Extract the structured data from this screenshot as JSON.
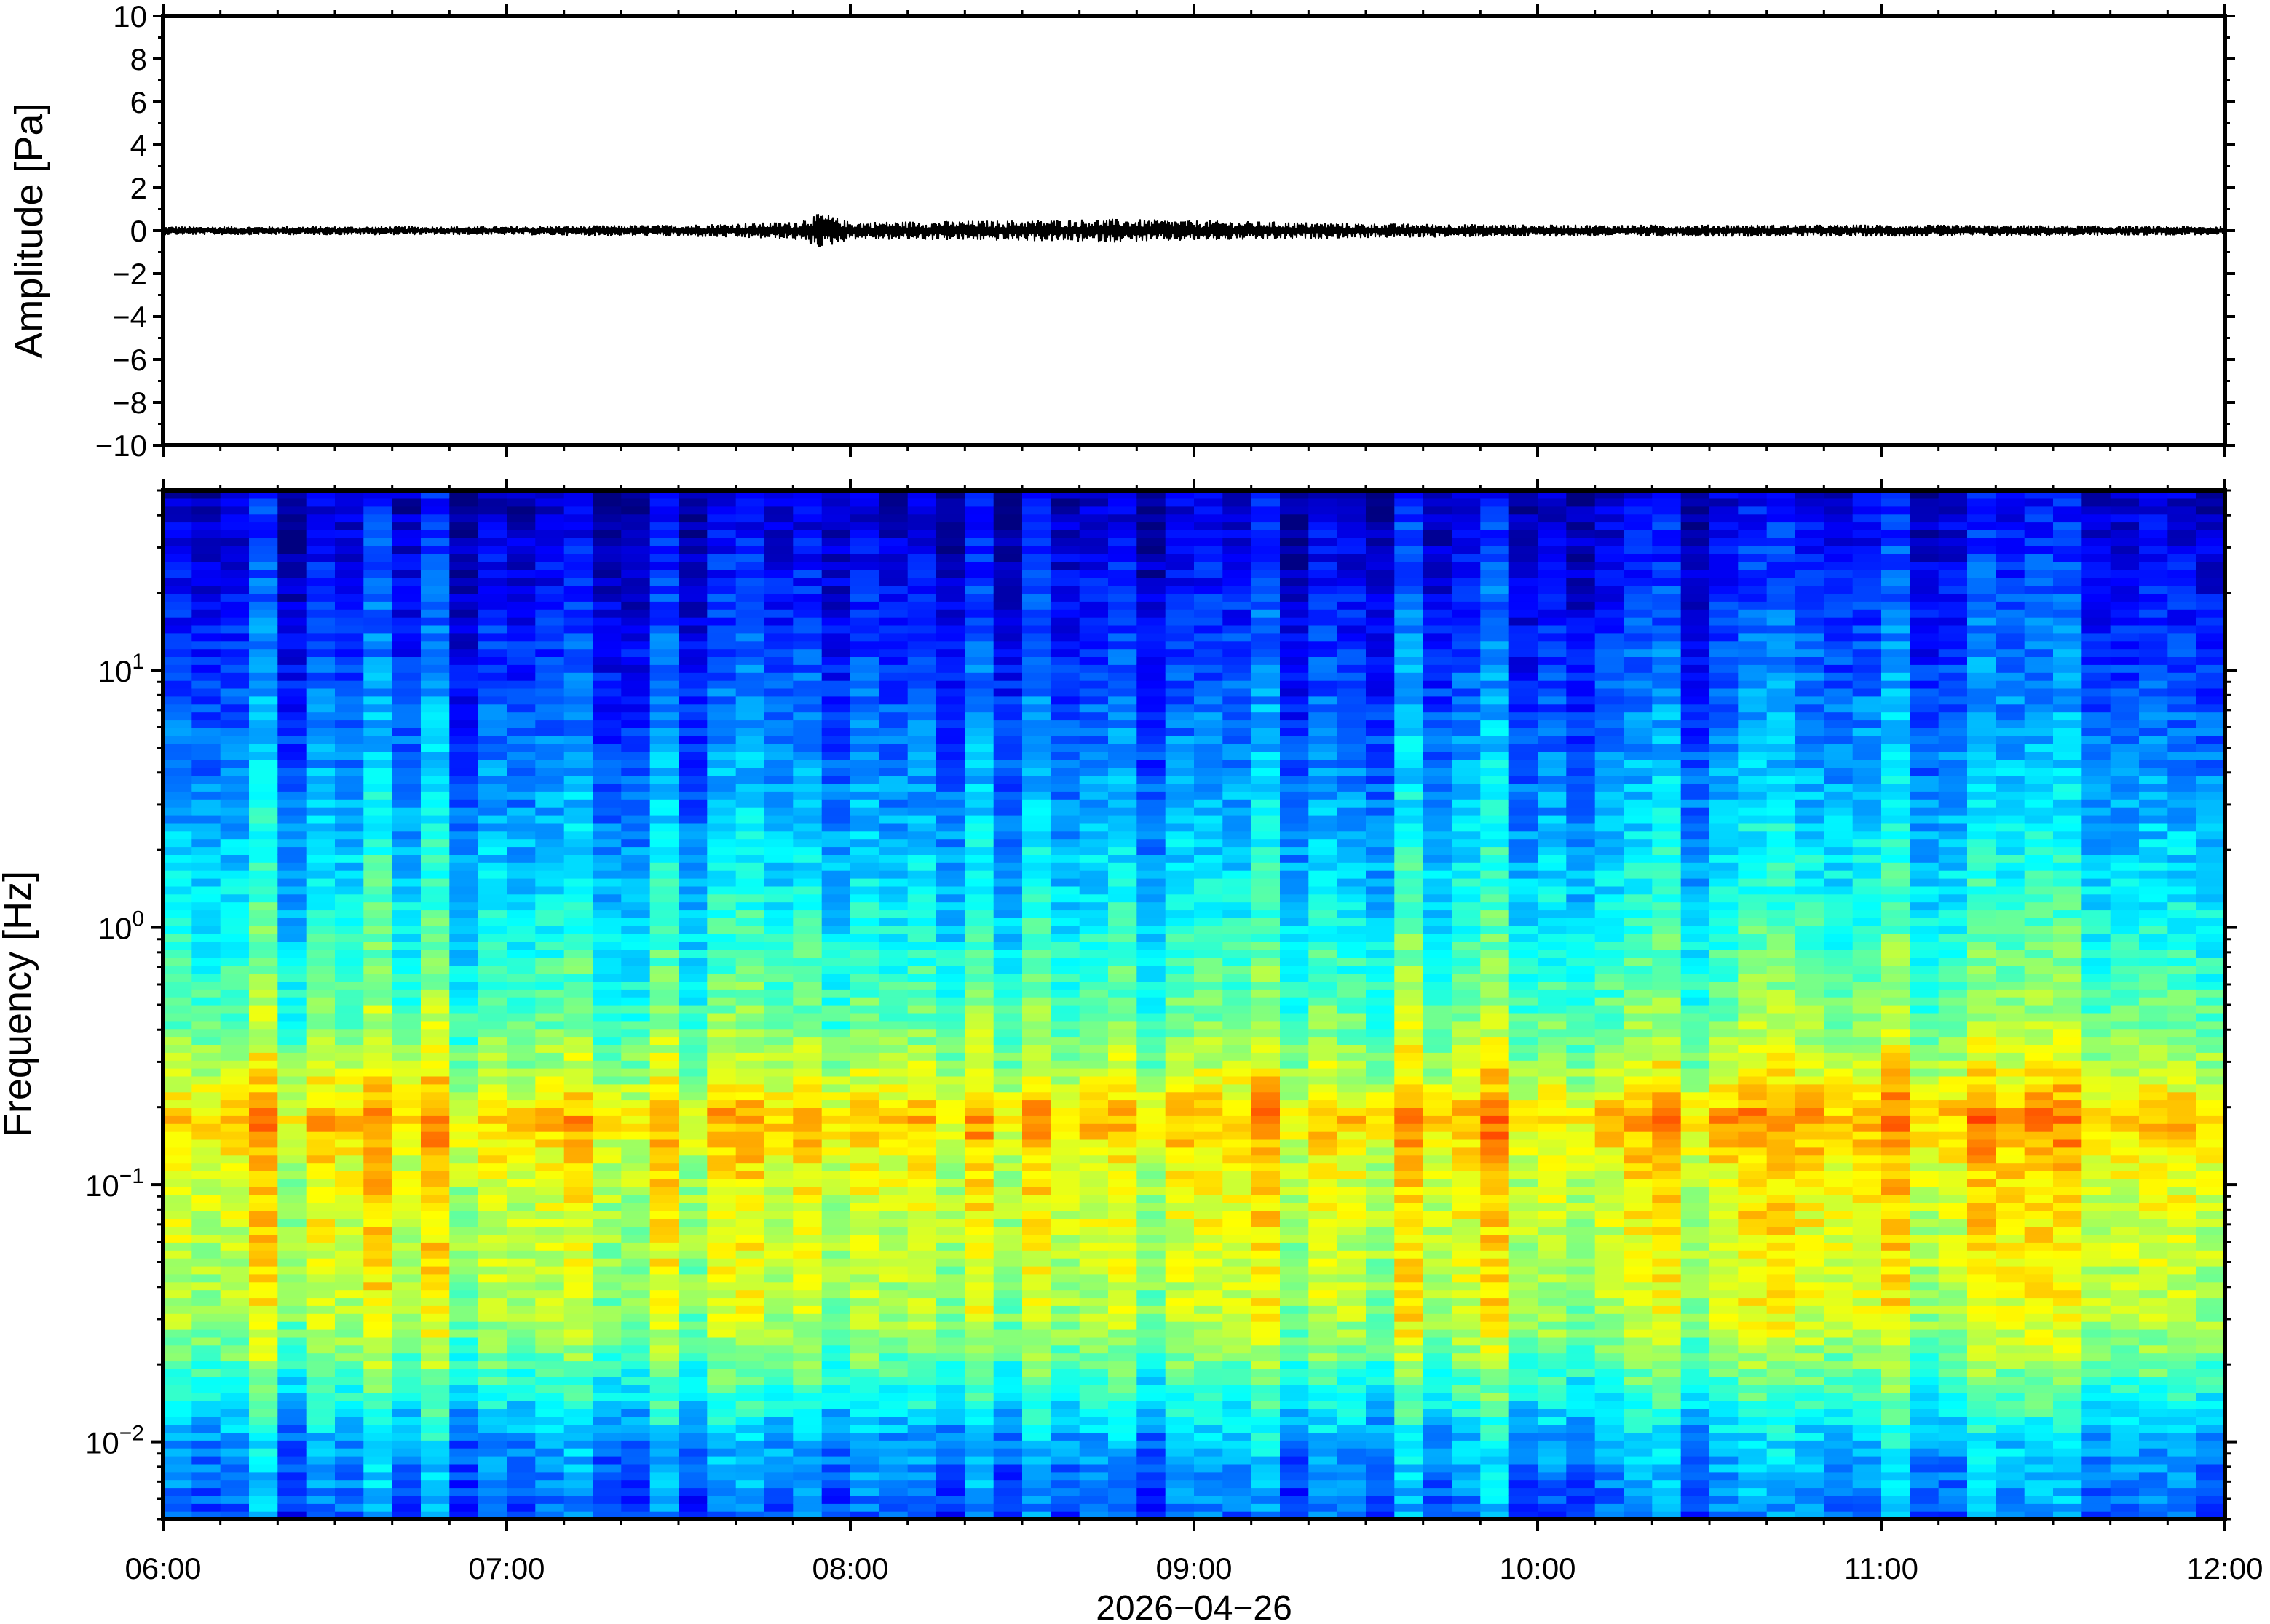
{
  "chart_data": [
    {
      "type": "line",
      "panel": "waveform",
      "ylabel": "Amplitude [Pa]",
      "ylim": [
        -10,
        10
      ],
      "y_ticks": [
        10,
        8,
        6,
        4,
        2,
        0,
        -2,
        -4,
        -6,
        -8,
        -10
      ],
      "y_tick_labels": [
        "10",
        "8",
        "6",
        "4",
        "2",
        "0",
        "−2",
        "−4",
        "−6",
        "−8",
        "−10"
      ],
      "x_range": [
        "06:00",
        "12:00"
      ],
      "series": [
        {
          "color": "#000000",
          "envelope_time": [
            "06:00",
            "06:30",
            "07:00",
            "07:30",
            "07:50",
            "07:55",
            "08:00",
            "08:30",
            "08:45",
            "09:00",
            "09:15",
            "09:30",
            "10:00",
            "10:30",
            "11:00",
            "11:30",
            "12:00"
          ],
          "envelope_amplitude": [
            0.15,
            0.15,
            0.15,
            0.2,
            0.3,
            0.6,
            0.3,
            0.35,
            0.4,
            0.35,
            0.3,
            0.25,
            0.2,
            0.2,
            0.2,
            0.18,
            0.15
          ]
        }
      ]
    },
    {
      "type": "heatmap",
      "panel": "spectrogram",
      "ylabel": "Frequency [Hz]",
      "y_scale": "log",
      "ylim": [
        0.005,
        50
      ],
      "y_tick_labels": [
        {
          "base": "10",
          "exp": "1",
          "value": 10
        },
        {
          "base": "10",
          "exp": "0",
          "value": 1
        },
        {
          "base": "10",
          "exp": "−1",
          "value": 0.1
        },
        {
          "base": "10",
          "exp": "−2",
          "value": 0.01
        }
      ],
      "colormap": "jet",
      "x_ticks": [
        "06:00",
        "07:00",
        "08:00",
        "09:00",
        "10:00",
        "11:00",
        "12:00"
      ],
      "x_date_label": "2026−04−26",
      "peak_band_hz": 0.18,
      "energy_profile_hz": [
        0.005,
        0.01,
        0.02,
        0.03,
        0.05,
        0.08,
        0.12,
        0.18,
        0.25,
        0.4,
        1,
        3,
        10,
        30,
        50
      ],
      "energy_profile_value": [
        0.22,
        0.3,
        0.48,
        0.56,
        0.58,
        0.6,
        0.62,
        0.7,
        0.6,
        0.5,
        0.4,
        0.3,
        0.2,
        0.12,
        0.08
      ]
    }
  ]
}
